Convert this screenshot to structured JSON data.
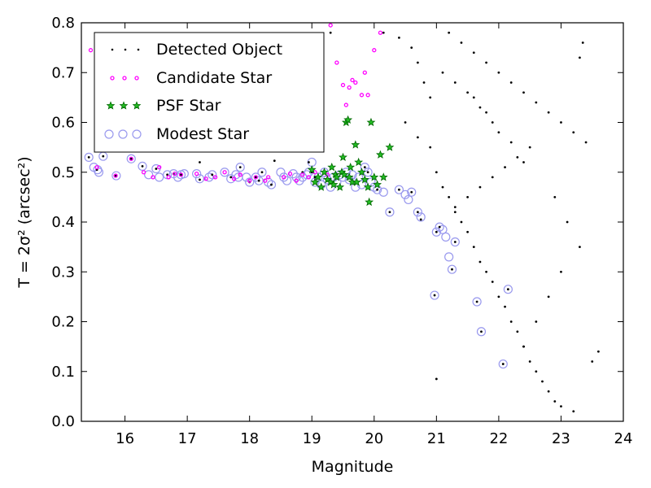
{
  "chart_data": {
    "type": "scatter",
    "title": "",
    "xlabel": "Magnitude",
    "ylabel": "T = 2σ² (arcsec²)",
    "xlim": [
      15.3,
      24.0
    ],
    "ylim": [
      0.0,
      0.8
    ],
    "x_ticks": [
      16,
      17,
      18,
      19,
      20,
      21,
      22,
      23,
      24
    ],
    "y_ticks": [
      0.0,
      0.1,
      0.2,
      0.3,
      0.4,
      0.5,
      0.6,
      0.7,
      0.8
    ],
    "x_tick_labels": [
      "16",
      "17",
      "18",
      "19",
      "20",
      "21",
      "22",
      "23",
      "24"
    ],
    "y_tick_labels": [
      "0.0",
      "0.1",
      "0.2",
      "0.3",
      "0.4",
      "0.5",
      "0.6",
      "0.7",
      "0.8"
    ],
    "legend_position": "top-left",
    "grid": false,
    "colors": {
      "detected": "#000000",
      "candidate": "#ff00ff",
      "psf_fill": "#22bb22",
      "psf_edge": "#006600",
      "modest": "#9999ee"
    },
    "legend": [
      "Detected Object",
      "Candidate Star",
      "PSF Star",
      "Modest Star"
    ],
    "series": [
      {
        "name": "Modest Star",
        "marker": "open-circle",
        "points": [
          [
            15.42,
            0.53
          ],
          [
            15.5,
            0.51
          ],
          [
            15.56,
            0.505
          ],
          [
            15.58,
            0.5
          ],
          [
            15.65,
            0.532
          ],
          [
            15.86,
            0.493
          ],
          [
            16.1,
            0.527
          ],
          [
            16.28,
            0.512
          ],
          [
            16.38,
            0.495
          ],
          [
            16.5,
            0.507
          ],
          [
            16.55,
            0.49
          ],
          [
            16.68,
            0.495
          ],
          [
            16.78,
            0.497
          ],
          [
            16.85,
            0.49
          ],
          [
            16.9,
            0.495
          ],
          [
            16.95,
            0.497
          ],
          [
            17.15,
            0.497
          ],
          [
            17.2,
            0.487
          ],
          [
            17.35,
            0.49
          ],
          [
            17.4,
            0.495
          ],
          [
            17.6,
            0.5
          ],
          [
            17.7,
            0.487
          ],
          [
            17.78,
            0.495
          ],
          [
            17.82,
            0.49
          ],
          [
            17.85,
            0.51
          ],
          [
            17.95,
            0.49
          ],
          [
            18.0,
            0.48
          ],
          [
            18.1,
            0.49
          ],
          [
            18.15,
            0.483
          ],
          [
            18.2,
            0.5
          ],
          [
            18.3,
            0.48
          ],
          [
            18.35,
            0.475
          ],
          [
            18.5,
            0.5
          ],
          [
            18.55,
            0.49
          ],
          [
            18.6,
            0.483
          ],
          [
            18.7,
            0.497
          ],
          [
            18.75,
            0.49
          ],
          [
            18.8,
            0.483
          ],
          [
            18.85,
            0.49
          ],
          [
            18.92,
            0.495
          ],
          [
            18.95,
            0.5
          ],
          [
            19.0,
            0.52
          ],
          [
            19.05,
            0.48
          ],
          [
            19.1,
            0.49
          ],
          [
            19.15,
            0.475
          ],
          [
            19.2,
            0.5
          ],
          [
            19.25,
            0.485
          ],
          [
            19.3,
            0.47
          ],
          [
            19.35,
            0.49
          ],
          [
            19.4,
            0.48
          ],
          [
            19.45,
            0.495
          ],
          [
            19.5,
            0.49
          ],
          [
            19.55,
            0.5
          ],
          [
            19.6,
            0.485
          ],
          [
            19.65,
            0.495
          ],
          [
            19.7,
            0.47
          ],
          [
            19.75,
            0.49
          ],
          [
            19.8,
            0.475
          ],
          [
            19.85,
            0.51
          ],
          [
            19.9,
            0.5
          ],
          [
            19.95,
            0.48
          ],
          [
            20.0,
            0.47
          ],
          [
            20.05,
            0.465
          ],
          [
            20.15,
            0.46
          ],
          [
            20.25,
            0.42
          ],
          [
            20.4,
            0.465
          ],
          [
            20.5,
            0.455
          ],
          [
            20.55,
            0.445
          ],
          [
            20.6,
            0.46
          ],
          [
            20.7,
            0.42
          ],
          [
            20.75,
            0.41
          ],
          [
            21.0,
            0.38
          ],
          [
            21.05,
            0.39
          ],
          [
            21.1,
            0.385
          ],
          [
            21.15,
            0.37
          ],
          [
            21.2,
            0.33
          ],
          [
            21.3,
            0.36
          ],
          [
            21.25,
            0.305
          ],
          [
            20.97,
            0.253
          ],
          [
            21.65,
            0.24
          ],
          [
            21.72,
            0.18
          ],
          [
            22.15,
            0.265
          ],
          [
            22.07,
            0.115
          ]
        ]
      },
      {
        "name": "Detected Object",
        "marker": "dot",
        "points": [
          [
            15.42,
            0.53
          ],
          [
            15.55,
            0.505
          ],
          [
            15.65,
            0.532
          ],
          [
            15.85,
            0.493
          ],
          [
            16.1,
            0.527
          ],
          [
            16.28,
            0.512
          ],
          [
            16.5,
            0.507
          ],
          [
            16.68,
            0.495
          ],
          [
            16.78,
            0.497
          ],
          [
            16.9,
            0.495
          ],
          [
            17.2,
            0.52
          ],
          [
            17.2,
            0.485
          ],
          [
            17.4,
            0.495
          ],
          [
            17.7,
            0.49
          ],
          [
            17.85,
            0.51
          ],
          [
            18.0,
            0.48
          ],
          [
            18.1,
            0.49
          ],
          [
            18.15,
            0.483
          ],
          [
            18.2,
            0.5
          ],
          [
            18.35,
            0.475
          ],
          [
            18.4,
            0.523
          ],
          [
            18.85,
            0.5
          ],
          [
            18.95,
            0.52
          ],
          [
            19.0,
            0.5
          ],
          [
            19.05,
            0.49
          ],
          [
            19.85,
            0.51
          ],
          [
            19.9,
            0.5
          ],
          [
            20.05,
            0.465
          ],
          [
            20.25,
            0.42
          ],
          [
            20.4,
            0.465
          ],
          [
            20.6,
            0.46
          ],
          [
            20.7,
            0.42
          ],
          [
            20.75,
            0.405
          ],
          [
            20.97,
            0.253
          ],
          [
            21.0,
            0.38
          ],
          [
            21.05,
            0.39
          ],
          [
            21.65,
            0.24
          ],
          [
            21.72,
            0.18
          ],
          [
            22.07,
            0.115
          ],
          [
            22.15,
            0.265
          ],
          [
            21.0,
            0.085
          ],
          [
            21.25,
            0.305
          ],
          [
            21.3,
            0.36
          ],
          [
            19.3,
            0.78
          ],
          [
            20.15,
            0.78
          ],
          [
            20.4,
            0.77
          ],
          [
            20.6,
            0.75
          ],
          [
            20.7,
            0.72
          ],
          [
            20.8,
            0.68
          ],
          [
            20.9,
            0.65
          ],
          [
            20.5,
            0.6
          ],
          [
            20.7,
            0.57
          ],
          [
            20.9,
            0.55
          ],
          [
            21.0,
            0.5
          ],
          [
            21.1,
            0.47
          ],
          [
            21.2,
            0.45
          ],
          [
            21.3,
            0.42
          ],
          [
            21.4,
            0.4
          ],
          [
            21.5,
            0.38
          ],
          [
            21.6,
            0.35
          ],
          [
            21.7,
            0.32
          ],
          [
            21.8,
            0.3
          ],
          [
            21.9,
            0.28
          ],
          [
            22.0,
            0.25
          ],
          [
            22.1,
            0.23
          ],
          [
            22.2,
            0.2
          ],
          [
            22.3,
            0.18
          ],
          [
            22.4,
            0.15
          ],
          [
            22.5,
            0.12
          ],
          [
            22.6,
            0.1
          ],
          [
            22.7,
            0.08
          ],
          [
            22.8,
            0.06
          ],
          [
            22.9,
            0.04
          ],
          [
            23.0,
            0.03
          ],
          [
            23.2,
            0.02
          ],
          [
            21.2,
            0.78
          ],
          [
            21.4,
            0.76
          ],
          [
            21.6,
            0.74
          ],
          [
            21.8,
            0.72
          ],
          [
            22.0,
            0.7
          ],
          [
            22.2,
            0.68
          ],
          [
            22.4,
            0.66
          ],
          [
            22.6,
            0.64
          ],
          [
            22.8,
            0.62
          ],
          [
            23.0,
            0.6
          ],
          [
            23.2,
            0.58
          ],
          [
            23.4,
            0.56
          ],
          [
            23.6,
            0.14
          ],
          [
            23.5,
            0.12
          ],
          [
            23.3,
            0.73
          ],
          [
            23.35,
            0.76
          ],
          [
            22.5,
            0.55
          ],
          [
            22.3,
            0.53
          ],
          [
            22.1,
            0.51
          ],
          [
            21.9,
            0.49
          ],
          [
            21.7,
            0.47
          ],
          [
            21.5,
            0.45
          ],
          [
            21.3,
            0.43
          ],
          [
            22.9,
            0.45
          ],
          [
            23.1,
            0.4
          ],
          [
            23.3,
            0.35
          ],
          [
            23.0,
            0.3
          ],
          [
            22.8,
            0.25
          ],
          [
            22.6,
            0.2
          ],
          [
            22.4,
            0.15
          ],
          [
            21.6,
            0.65
          ],
          [
            21.8,
            0.62
          ],
          [
            22.0,
            0.58
          ],
          [
            22.2,
            0.56
          ],
          [
            22.4,
            0.52
          ],
          [
            21.1,
            0.7
          ],
          [
            21.3,
            0.68
          ],
          [
            21.5,
            0.66
          ],
          [
            21.7,
            0.63
          ],
          [
            21.9,
            0.6
          ]
        ]
      },
      {
        "name": "Candidate Star",
        "marker": "small-circle",
        "points": [
          [
            15.45,
            0.745
          ],
          [
            15.55,
            0.51
          ],
          [
            15.85,
            0.493
          ],
          [
            16.1,
            0.527
          ],
          [
            16.3,
            0.5
          ],
          [
            16.45,
            0.49
          ],
          [
            16.55,
            0.51
          ],
          [
            16.7,
            0.49
          ],
          [
            16.8,
            0.497
          ],
          [
            16.9,
            0.495
          ],
          [
            17.15,
            0.497
          ],
          [
            17.3,
            0.487
          ],
          [
            17.45,
            0.49
          ],
          [
            17.6,
            0.5
          ],
          [
            17.75,
            0.487
          ],
          [
            17.85,
            0.495
          ],
          [
            18.0,
            0.483
          ],
          [
            18.1,
            0.49
          ],
          [
            18.25,
            0.483
          ],
          [
            18.3,
            0.49
          ],
          [
            18.55,
            0.49
          ],
          [
            18.65,
            0.497
          ],
          [
            18.75,
            0.483
          ],
          [
            18.85,
            0.495
          ],
          [
            18.95,
            0.49
          ],
          [
            19.05,
            0.5
          ],
          [
            19.3,
            0.795
          ],
          [
            19.4,
            0.72
          ],
          [
            19.5,
            0.675
          ],
          [
            19.55,
            0.635
          ],
          [
            19.6,
            0.67
          ],
          [
            19.65,
            0.685
          ],
          [
            19.7,
            0.68
          ],
          [
            19.8,
            0.655
          ],
          [
            19.85,
            0.7
          ],
          [
            19.9,
            0.655
          ],
          [
            20.0,
            0.745
          ],
          [
            20.1,
            0.78
          ],
          [
            19.25,
            0.495
          ]
        ]
      },
      {
        "name": "PSF Star",
        "marker": "star",
        "points": [
          [
            19.1,
            0.49
          ],
          [
            19.15,
            0.47
          ],
          [
            19.2,
            0.5
          ],
          [
            19.25,
            0.485
          ],
          [
            19.3,
            0.48
          ],
          [
            19.32,
            0.51
          ],
          [
            19.35,
            0.475
          ],
          [
            19.38,
            0.495
          ],
          [
            19.4,
            0.49
          ],
          [
            19.45,
            0.47
          ],
          [
            19.48,
            0.5
          ],
          [
            19.5,
            0.53
          ],
          [
            19.52,
            0.495
          ],
          [
            19.55,
            0.6
          ],
          [
            19.58,
            0.605
          ],
          [
            19.6,
            0.49
          ],
          [
            19.62,
            0.51
          ],
          [
            19.65,
            0.48
          ],
          [
            19.7,
            0.555
          ],
          [
            19.72,
            0.48
          ],
          [
            19.75,
            0.52
          ],
          [
            19.8,
            0.5
          ],
          [
            19.85,
            0.485
          ],
          [
            19.9,
            0.47
          ],
          [
            19.92,
            0.44
          ],
          [
            19.95,
            0.6
          ],
          [
            20.0,
            0.49
          ],
          [
            20.05,
            0.475
          ],
          [
            20.1,
            0.535
          ],
          [
            20.15,
            0.49
          ],
          [
            20.25,
            0.55
          ],
          [
            19.0,
            0.505
          ],
          [
            19.05,
            0.48
          ]
        ]
      }
    ]
  }
}
